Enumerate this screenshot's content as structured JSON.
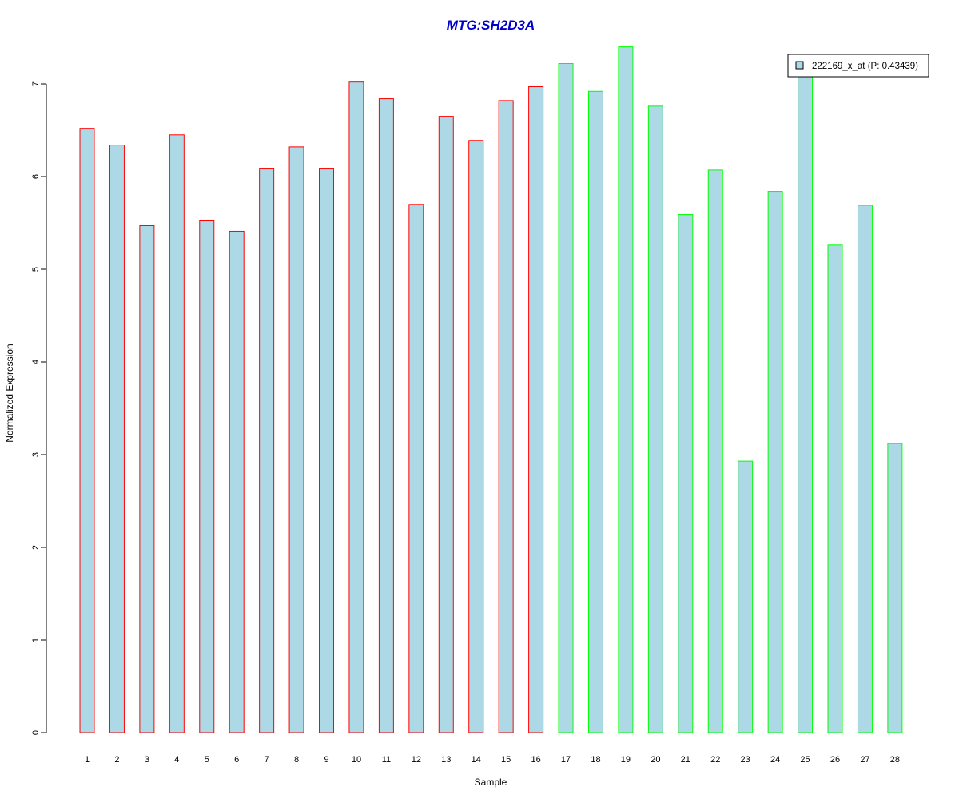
{
  "chart_data": {
    "type": "bar",
    "title": "MTG:SH2D3A",
    "xlabel": "Sample",
    "ylabel": "Normalized Expression",
    "categories": [
      "1",
      "2",
      "3",
      "4",
      "5",
      "6",
      "7",
      "8",
      "9",
      "10",
      "11",
      "12",
      "13",
      "14",
      "15",
      "16",
      "17",
      "18",
      "19",
      "20",
      "21",
      "22",
      "23",
      "24",
      "25",
      "26",
      "27",
      "28"
    ],
    "series": [
      {
        "name": "222169_x_at (P: 0.43439)",
        "values": [
          6.52,
          6.34,
          5.47,
          6.45,
          5.53,
          5.41,
          6.09,
          6.32,
          6.09,
          7.02,
          6.84,
          5.7,
          6.65,
          6.39,
          6.82,
          6.97,
          7.22,
          6.92,
          7.4,
          6.76,
          5.59,
          6.07,
          2.93,
          5.84,
          7.15,
          5.26,
          5.69,
          3.12
        ]
      }
    ],
    "group_outline": [
      "red",
      "red",
      "red",
      "red",
      "red",
      "red",
      "red",
      "red",
      "red",
      "red",
      "red",
      "red",
      "red",
      "red",
      "red",
      "red",
      "green",
      "green",
      "green",
      "green",
      "green",
      "green",
      "green",
      "green",
      "green",
      "green",
      "green",
      "green"
    ],
    "y_ticks": [
      "0",
      "1",
      "2",
      "3",
      "4",
      "5",
      "6",
      "7"
    ],
    "ylim": [
      0,
      7.4
    ],
    "grid": false,
    "legend_position": "top-right",
    "colors": {
      "bar_fill": "#add8e6",
      "outline_group1": "#ff0000",
      "outline_group2": "#00ff00",
      "title": "#0000cd",
      "axis": "#000000"
    }
  }
}
